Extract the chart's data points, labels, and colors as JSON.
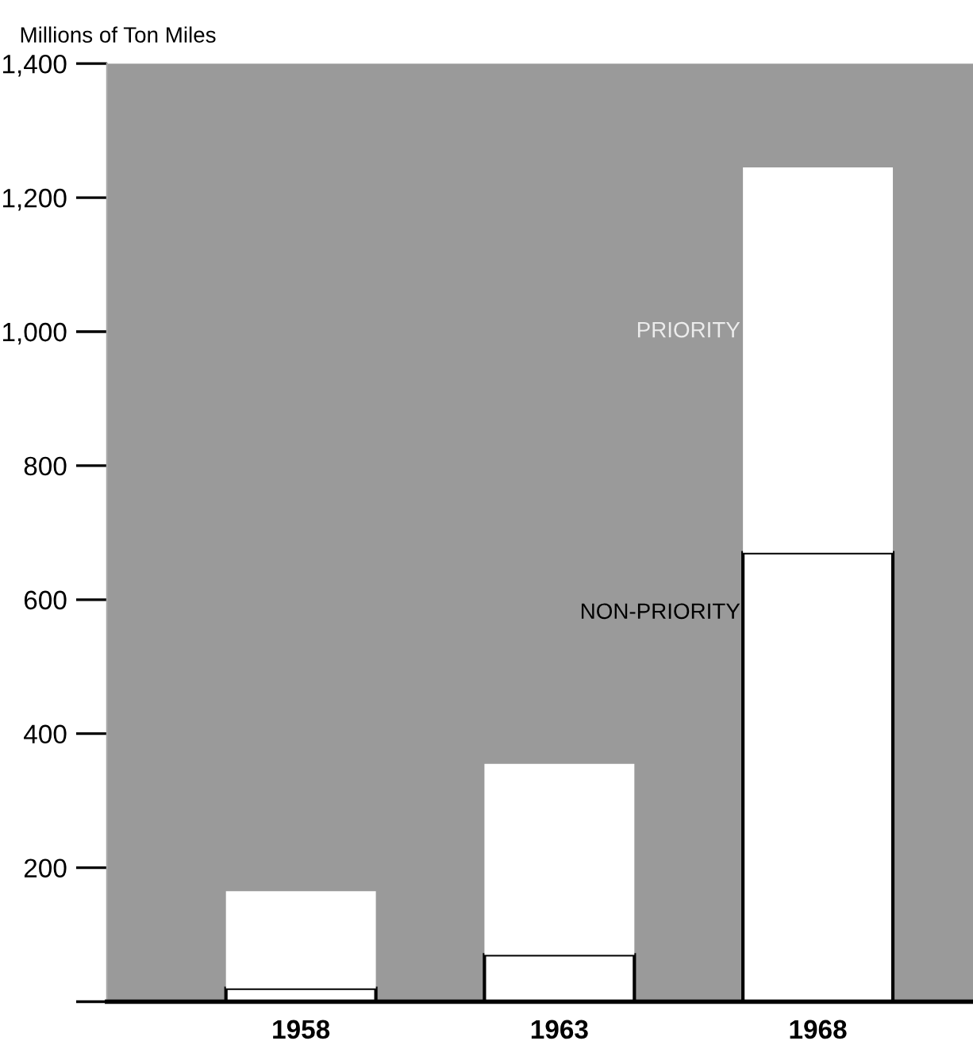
{
  "chart_data": {
    "type": "bar",
    "ylabel": "Millions of Ton Miles",
    "categories": [
      "1958",
      "1963",
      "1968"
    ],
    "stacked": true,
    "series": [
      {
        "name": "NON-PRIORITY",
        "color": "#ffffff",
        "values": [
          20,
          70,
          670
        ]
      },
      {
        "name": "PRIORITY",
        "color": "#ffffff",
        "values": [
          145,
          285,
          575
        ]
      }
    ],
    "ylim": [
      0,
      1400
    ],
    "yticks": [
      {
        "value": 0,
        "label": null
      },
      200,
      400,
      600,
      800,
      "1,000",
      "1,200",
      "1,400"
    ],
    "grid": false,
    "legend": false
  }
}
